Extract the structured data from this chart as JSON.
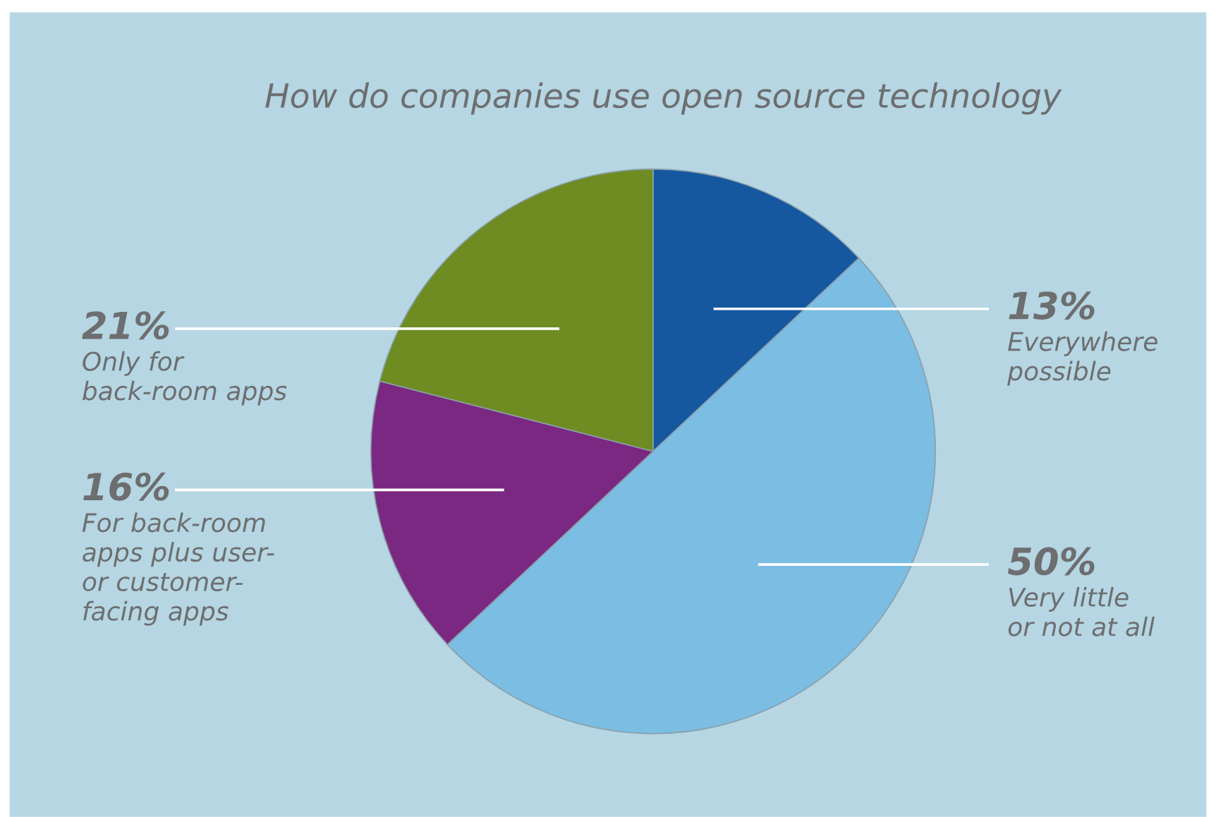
{
  "chart_data": {
    "type": "pie",
    "title": "How do companies use open source technology",
    "categories": [
      "Everywhere\npossible",
      "Very little\nor not at all",
      "For back-room\napps plus user-\nor customer-\nfacing apps",
      "Only for\nback-room apps"
    ],
    "values": [
      13,
      50,
      16,
      21
    ],
    "colors": [
      "#1558a0",
      "#7bbde3",
      "#7b2882",
      "#6e8c22"
    ],
    "value_labels": [
      "13%",
      "50%",
      "16%",
      "21%"
    ]
  }
}
